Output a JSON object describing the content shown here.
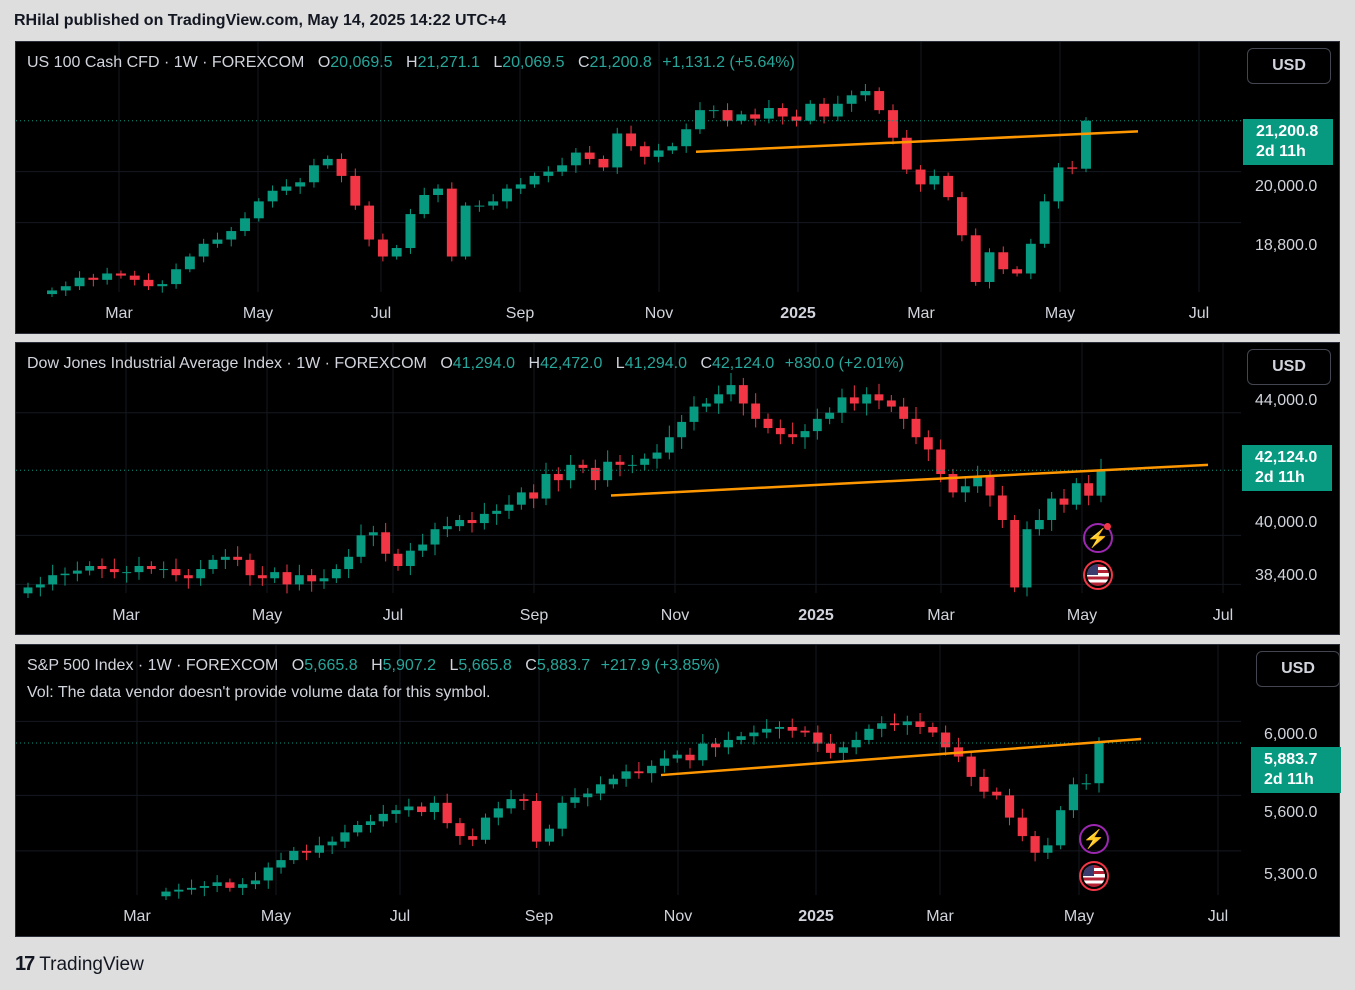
{
  "header": {
    "publisher": "RHilal published on TradingView.com, May 14, 2025 14:22 UTC+4"
  },
  "footer": {
    "brand": "TradingView"
  },
  "colors": {
    "up": "#089981",
    "down": "#f23645",
    "trendline": "#ff9800",
    "background": "#000000"
  },
  "panels": [
    {
      "symbol": "US 100 Cash CFD · 1W · FOREXCOM",
      "o_label": "O",
      "open": "20,069.5",
      "h_label": "H",
      "high": "21,271.1",
      "l_label": "L",
      "low": "20,069.5",
      "c_label": "C",
      "close": "21,200.8",
      "change": "+1,131.2 (+5.64%)",
      "currency": "USD",
      "price_tag": {
        "price": "21,200.8",
        "countdown": "2d 11h"
      },
      "y_ticks": [
        "20,000.0",
        "18,800.0"
      ],
      "x_ticks": [
        "Mar",
        "May",
        "Jul",
        "Sep",
        "Nov",
        "2025",
        "Mar",
        "May",
        "Jul"
      ]
    },
    {
      "symbol": "Dow Jones Industrial Average Index · 1W · FOREXCOM",
      "o_label": "O",
      "open": "41,294.0",
      "h_label": "H",
      "high": "42,472.0",
      "l_label": "L",
      "low": "41,294.0",
      "c_label": "C",
      "close": "42,124.0",
      "change": "+830.0 (+2.01%)",
      "currency": "USD",
      "price_tag": {
        "price": "42,124.0",
        "countdown": "2d 11h"
      },
      "y_ticks": [
        "44,000.0",
        "40,000.0",
        "38,400.0"
      ],
      "x_ticks": [
        "Mar",
        "May",
        "Jul",
        "Sep",
        "Nov",
        "2025",
        "Mar",
        "May",
        "Jul"
      ],
      "badges": [
        "lightning-icon",
        "us-flag-icon"
      ]
    },
    {
      "symbol": "S&P 500 Index · 1W · FOREXCOM",
      "o_label": "O",
      "open": "5,665.8",
      "h_label": "H",
      "high": "5,907.2",
      "l_label": "L",
      "low": "5,665.8",
      "c_label": "C",
      "close": "5,883.7",
      "change": "+217.9 (+3.85%)",
      "volume_note": "Vol: The data vendor doesn't provide volume data for this symbol.",
      "currency": "USD",
      "price_tag": {
        "price": "5,883.7",
        "countdown": "2d 11h"
      },
      "y_ticks": [
        "6,000.0",
        "5,600.0",
        "5,300.0"
      ],
      "x_ticks": [
        "Mar",
        "May",
        "Jul",
        "Sep",
        "Nov",
        "2025",
        "Mar",
        "May",
        "Jul"
      ],
      "badges": [
        "lightning-icon",
        "us-flag-icon"
      ]
    }
  ],
  "chart_data": [
    {
      "type": "candlestick",
      "symbol": "US 100 Cash CFD",
      "interval": "1W",
      "x_range": [
        "2024-02",
        "2025-07"
      ],
      "close_series": [
        17200,
        17300,
        17500,
        17450,
        17600,
        17550,
        17450,
        17300,
        17350,
        17700,
        18000,
        18300,
        18400,
        18600,
        18900,
        19300,
        19550,
        19650,
        19750,
        20150,
        20300,
        19900,
        19200,
        18400,
        18000,
        18200,
        19000,
        19450,
        19600,
        18000,
        19200,
        19200,
        19300,
        19600,
        19700,
        19900,
        20000,
        20150,
        20450,
        20300,
        20100,
        20900,
        20600,
        20350,
        20500,
        20600,
        21000,
        21450,
        21450,
        21200,
        21350,
        21250,
        21500,
        21300,
        21200,
        21600,
        21300,
        21600,
        21800,
        21900,
        21450,
        20800,
        20050,
        19700,
        19900,
        19400,
        18500,
        17400,
        18100,
        17700,
        17600,
        18300,
        19300,
        20100,
        20069.5,
        21200.8
      ],
      "trendline": {
        "from": [
          "2024-11",
          20470
        ],
        "to": [
          "2025-06",
          20950
        ],
        "color": "#ff9800"
      },
      "last_price": 21200.8,
      "y_ticks": [
        20000,
        18800
      ]
    },
    {
      "type": "candlestick",
      "symbol": "Dow Jones Industrial Average Index",
      "interval": "1W",
      "x_range": [
        "2024-02",
        "2025-07"
      ],
      "close_series": [
        38300,
        38400,
        38700,
        38750,
        38850,
        39000,
        38900,
        38800,
        38800,
        39000,
        38900,
        38900,
        38700,
        38600,
        38900,
        39200,
        39300,
        39200,
        38700,
        38600,
        38800,
        38400,
        38700,
        38500,
        38600,
        38900,
        39300,
        40000,
        40100,
        39400,
        39000,
        39500,
        39700,
        40200,
        40300,
        40500,
        40400,
        40700,
        40800,
        41000,
        41400,
        41200,
        42000,
        41800,
        42300,
        42200,
        41800,
        42400,
        42300,
        42300,
        42500,
        42700,
        43200,
        43700,
        44200,
        44300,
        44600,
        44900,
        44300,
        43800,
        43500,
        43300,
        43200,
        43400,
        43800,
        44000,
        44500,
        44300,
        44600,
        44400,
        44200,
        43800,
        43200,
        42800,
        42000,
        41400,
        41600,
        41900,
        41300,
        40500,
        38300,
        40200,
        40500,
        41200,
        41000,
        41700,
        41294,
        42124
      ],
      "trendline": {
        "from": [
          "2024-10",
          41300
        ],
        "to": [
          "2025-06",
          42300
        ],
        "color": "#ff9800"
      },
      "last_price": 42124.0,
      "y_ticks": [
        44000,
        40000,
        38400
      ]
    },
    {
      "type": "candlestick",
      "symbol": "S&P 500 Index",
      "interval": "1W",
      "x_range": [
        "2024-02",
        "2025-07"
      ],
      "close_series": [
        5080,
        5090,
        5100,
        5110,
        5130,
        5100,
        5120,
        5140,
        5210,
        5250,
        5300,
        5290,
        5330,
        5350,
        5400,
        5440,
        5460,
        5500,
        5520,
        5540,
        5510,
        5560,
        5450,
        5380,
        5360,
        5480,
        5530,
        5580,
        5570,
        5350,
        5420,
        5560,
        5590,
        5610,
        5660,
        5690,
        5730,
        5720,
        5760,
        5800,
        5820,
        5790,
        5880,
        5860,
        5900,
        5920,
        5940,
        5960,
        5970,
        5950,
        5940,
        5880,
        5830,
        5860,
        5900,
        5960,
        5990,
        5980,
        6000,
        5970,
        5940,
        5860,
        5810,
        5700,
        5620,
        5600,
        5480,
        5380,
        5290,
        5330,
        5520,
        5660,
        5665.8,
        5883.7
      ],
      "trendline": {
        "from": [
          "2024-10",
          5710
        ],
        "to": [
          "2025-06",
          5905
        ],
        "color": "#ff9800"
      },
      "last_price": 5883.7,
      "y_ticks": [
        6000,
        5600,
        5300
      ]
    }
  ]
}
